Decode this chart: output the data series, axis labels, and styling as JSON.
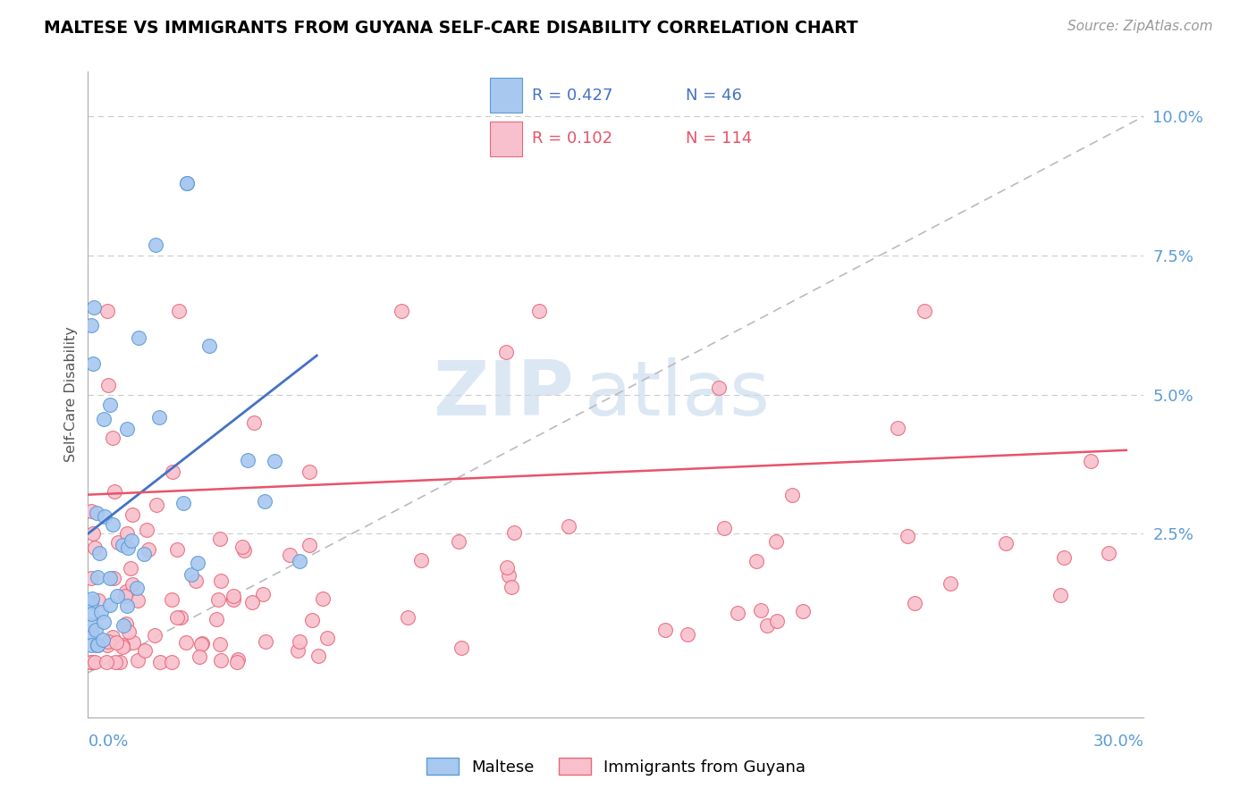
{
  "title": "MALTESE VS IMMIGRANTS FROM GUYANA SELF-CARE DISABILITY CORRELATION CHART",
  "source": "Source: ZipAtlas.com",
  "ylabel": "Self-Care Disability",
  "xlim": [
    0.0,
    0.3
  ],
  "ylim": [
    -0.008,
    0.108
  ],
  "legend_r1": "R = 0.427",
  "legend_n1": "N = 46",
  "legend_r2": "R = 0.102",
  "legend_n2": "N = 114",
  "legend_label1": "Maltese",
  "legend_label2": "Immigrants from Guyana",
  "color_blue_fill": "#A8C8F0",
  "color_blue_edge": "#5B9BD5",
  "color_pink_fill": "#F8C0CC",
  "color_pink_edge": "#E8687A",
  "color_blue_line": "#4472C4",
  "color_pink_line": "#E8536A",
  "color_axis_label": "#5B9BD5",
  "color_diag": "#BBBBBB",
  "color_grid": "#CCCCCC"
}
